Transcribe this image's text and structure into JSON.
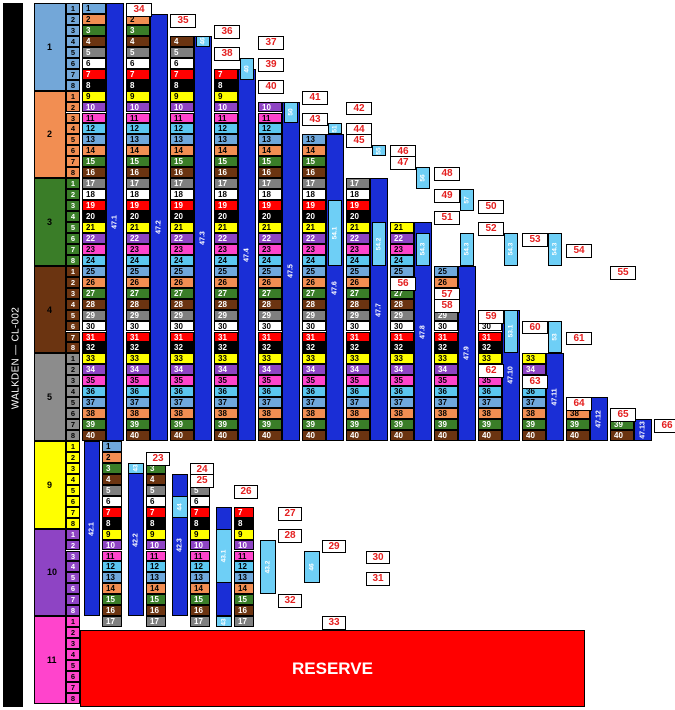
{
  "title": "WALKDEN — CL-002",
  "reserve_label": "RESERVE",
  "colors": {
    "trunk": "#1a2ed6",
    "branch": "#6ecff6",
    "terminal_text": "#e41f1f",
    "reserve": "#ff0000",
    "fibre_cycle": [
      "#6fa8dc",
      "#f28e52",
      "#3a7d28",
      "#6b3411",
      "#7f7f7f",
      "#ffffff",
      "#ff0000",
      "#000000",
      "#ffff00",
      "#8e44c4",
      "#ff44cc",
      "#5bc7f0"
    ]
  },
  "trays": [
    {
      "label": "1",
      "color": "#73a7d8"
    },
    {
      "label": "2",
      "color": "#f28e52"
    },
    {
      "label": "3",
      "color": "#3a7d28"
    },
    {
      "label": "4",
      "color": "#6b3411"
    },
    {
      "label": "5",
      "color": "#8c8c8c"
    },
    {
      "label": "9",
      "color": "#ffff00"
    },
    {
      "label": "10",
      "color": "#8e44c4"
    },
    {
      "label": "11",
      "color": "#ff44cc"
    }
  ],
  "top_cables": [
    {
      "label": "47.1",
      "top_fibre": 1
    },
    {
      "label": "47.2",
      "top_fibre": 2
    },
    {
      "label": "47.3",
      "top_fibre": 4
    },
    {
      "label": "47.4",
      "top_fibre": 7
    },
    {
      "label": "47.5",
      "top_fibre": 10
    },
    {
      "label": "47.6",
      "top_fibre": 13
    },
    {
      "label": "47.7",
      "top_fibre": 17
    },
    {
      "label": "47.8",
      "top_fibre": 21
    },
    {
      "label": "47.9",
      "top_fibre": 25
    },
    {
      "label": "47.10",
      "top_fibre": 29
    },
    {
      "label": "47.11",
      "top_fibre": 33
    },
    {
      "label": "47.12",
      "top_fibre": 37
    },
    {
      "label": "47.13",
      "top_fibre": 39
    }
  ],
  "branch_cables": [
    {
      "label": "46",
      "col": 2,
      "from": 4,
      "to": 4
    },
    {
      "label": "40",
      "col": 3,
      "from": 6,
      "to": 7
    },
    {
      "label": "50",
      "col": 4,
      "from": 10,
      "to": 11
    },
    {
      "label": "51",
      "col": 5,
      "from": 12,
      "to": 12
    },
    {
      "label": "55",
      "col": 6,
      "from": 14,
      "to": 14
    },
    {
      "label": "56",
      "col": 7,
      "from": 16,
      "to": 17
    },
    {
      "label": "57",
      "col": 8,
      "from": 18,
      "to": 19
    },
    {
      "label": "54.1",
      "col": 5,
      "from": 19,
      "to": 24
    },
    {
      "label": "54.2",
      "col": 6,
      "from": 21,
      "to": 24
    },
    {
      "label": "54.3",
      "col": 7,
      "from": 22,
      "to": 24
    },
    {
      "label": "54.3",
      "col": 8,
      "from": 22,
      "to": 24
    },
    {
      "label": "54.3",
      "col": 9,
      "from": 22,
      "to": 24
    },
    {
      "label": "54.3",
      "col": 10,
      "from": 22,
      "to": 24
    },
    {
      "label": "53.1",
      "col": 9,
      "from": 29,
      "to": 32
    },
    {
      "label": "53",
      "col": 10,
      "from": 30,
      "to": 32
    }
  ],
  "terminals": [
    {
      "label": "34",
      "col": 1,
      "fibre": 1
    },
    {
      "label": "35",
      "col": 2,
      "fibre": 2
    },
    {
      "label": "36",
      "col": 3,
      "fibre": 3
    },
    {
      "label": "37",
      "col": 4,
      "fibre": 4
    },
    {
      "label": "38",
      "col": 3,
      "fibre": 5
    },
    {
      "label": "39",
      "col": 4,
      "fibre": 6
    },
    {
      "label": "40",
      "col": 4,
      "fibre": 8
    },
    {
      "label": "41",
      "col": 5,
      "fibre": 9
    },
    {
      "label": "42",
      "col": 6,
      "fibre": 10
    },
    {
      "label": "43",
      "col": 5,
      "fibre": 11
    },
    {
      "label": "44",
      "col": 6,
      "fibre": 12
    },
    {
      "label": "45",
      "col": 6,
      "fibre": 13
    },
    {
      "label": "46",
      "col": 7,
      "fibre": 14
    },
    {
      "label": "47",
      "col": 7,
      "fibre": 15
    },
    {
      "label": "48",
      "col": 8,
      "fibre": 16
    },
    {
      "label": "49",
      "col": 8,
      "fibre": 18
    },
    {
      "label": "50",
      "col": 9,
      "fibre": 19
    },
    {
      "label": "51",
      "col": 8,
      "fibre": 20
    },
    {
      "label": "52",
      "col": 9,
      "fibre": 21
    },
    {
      "label": "53",
      "col": 10,
      "fibre": 22
    },
    {
      "label": "54",
      "col": 11,
      "fibre": 23
    },
    {
      "label": "55",
      "col": 12,
      "fibre": 25
    },
    {
      "label": "56",
      "col": 7,
      "fibre": 26
    },
    {
      "label": "57",
      "col": 8,
      "fibre": 27
    },
    {
      "label": "58",
      "col": 8,
      "fibre": 28
    },
    {
      "label": "59",
      "col": 9,
      "fibre": 29
    },
    {
      "label": "60",
      "col": 10,
      "fibre": 30
    },
    {
      "label": "61",
      "col": 11,
      "fibre": 31
    },
    {
      "label": "62",
      "col": 9,
      "fibre": 34
    },
    {
      "label": "63",
      "col": 10,
      "fibre": 35
    },
    {
      "label": "64",
      "col": 11,
      "fibre": 37
    },
    {
      "label": "65",
      "col": 12,
      "fibre": 38
    },
    {
      "label": "66",
      "col": 13,
      "fibre": 39
    }
  ],
  "bottom_cables": [
    {
      "label": "42.1",
      "top_fibre": 1
    },
    {
      "label": "42.2",
      "top_fibre": 3
    },
    {
      "label": "42.3",
      "top_fibre": 4
    },
    {
      "label": "42.4",
      "top_fibre": 7
    }
  ],
  "bottom_branches": [
    {
      "label": "43",
      "col": 1,
      "from": 3,
      "to": 3
    },
    {
      "label": "44",
      "col": 2,
      "from": 6,
      "to": 7
    },
    {
      "label": "43.1",
      "col": 3,
      "from": 9,
      "to": 13
    },
    {
      "label": "43.2",
      "col": 4,
      "from": 10,
      "to": 14
    },
    {
      "label": "46",
      "col": 5,
      "from": 11,
      "to": 13
    },
    {
      "label": "43",
      "col": 3,
      "from": 17,
      "to": 17
    }
  ],
  "bottom_terminals": [
    {
      "label": "23",
      "col": 1,
      "fibre": 2
    },
    {
      "label": "24",
      "col": 2,
      "fibre": 3
    },
    {
      "label": "25",
      "col": 2,
      "fibre": 4
    },
    {
      "label": "26",
      "col": 3,
      "fibre": 5
    },
    {
      "label": "27",
      "col": 4,
      "fibre": 7
    },
    {
      "label": "28",
      "col": 4,
      "fibre": 9
    },
    {
      "label": "29",
      "col": 5,
      "fibre": 10
    },
    {
      "label": "30",
      "col": 6,
      "fibre": 11
    },
    {
      "label": "31",
      "col": 6,
      "fibre": 13
    },
    {
      "label": "32",
      "col": 4,
      "fibre": 15
    },
    {
      "label": "33",
      "col": 5,
      "fibre": 17
    }
  ]
}
